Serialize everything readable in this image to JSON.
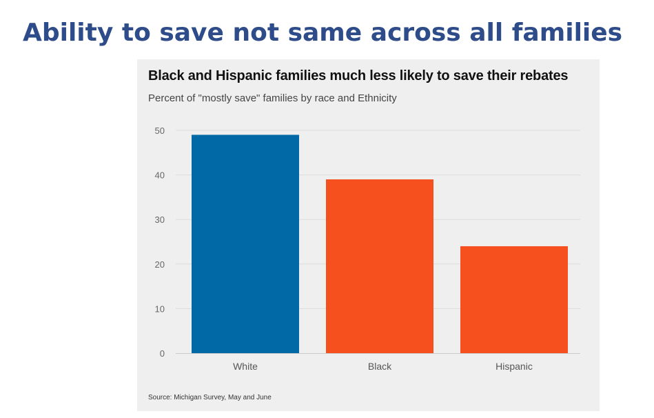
{
  "slide": {
    "title": "Ability to save not same across all families"
  },
  "chart_data": {
    "type": "bar",
    "title": "Black and Hispanic families much less likely to save their rebates",
    "subtitle": "Percent of \"mostly save\" families by race and Ethnicity",
    "categories": [
      "White",
      "Black",
      "Hispanic"
    ],
    "values": [
      49,
      39,
      24
    ],
    "bar_colors": [
      "#0069a6",
      "#f5501e"
    ],
    "ylim": [
      0,
      50
    ],
    "yticks": [
      "0",
      "10",
      "20",
      "30",
      "40",
      "50"
    ],
    "grid": true,
    "xlabel": "",
    "ylabel": "",
    "source": "Source: Michigan Survey, May and June"
  }
}
